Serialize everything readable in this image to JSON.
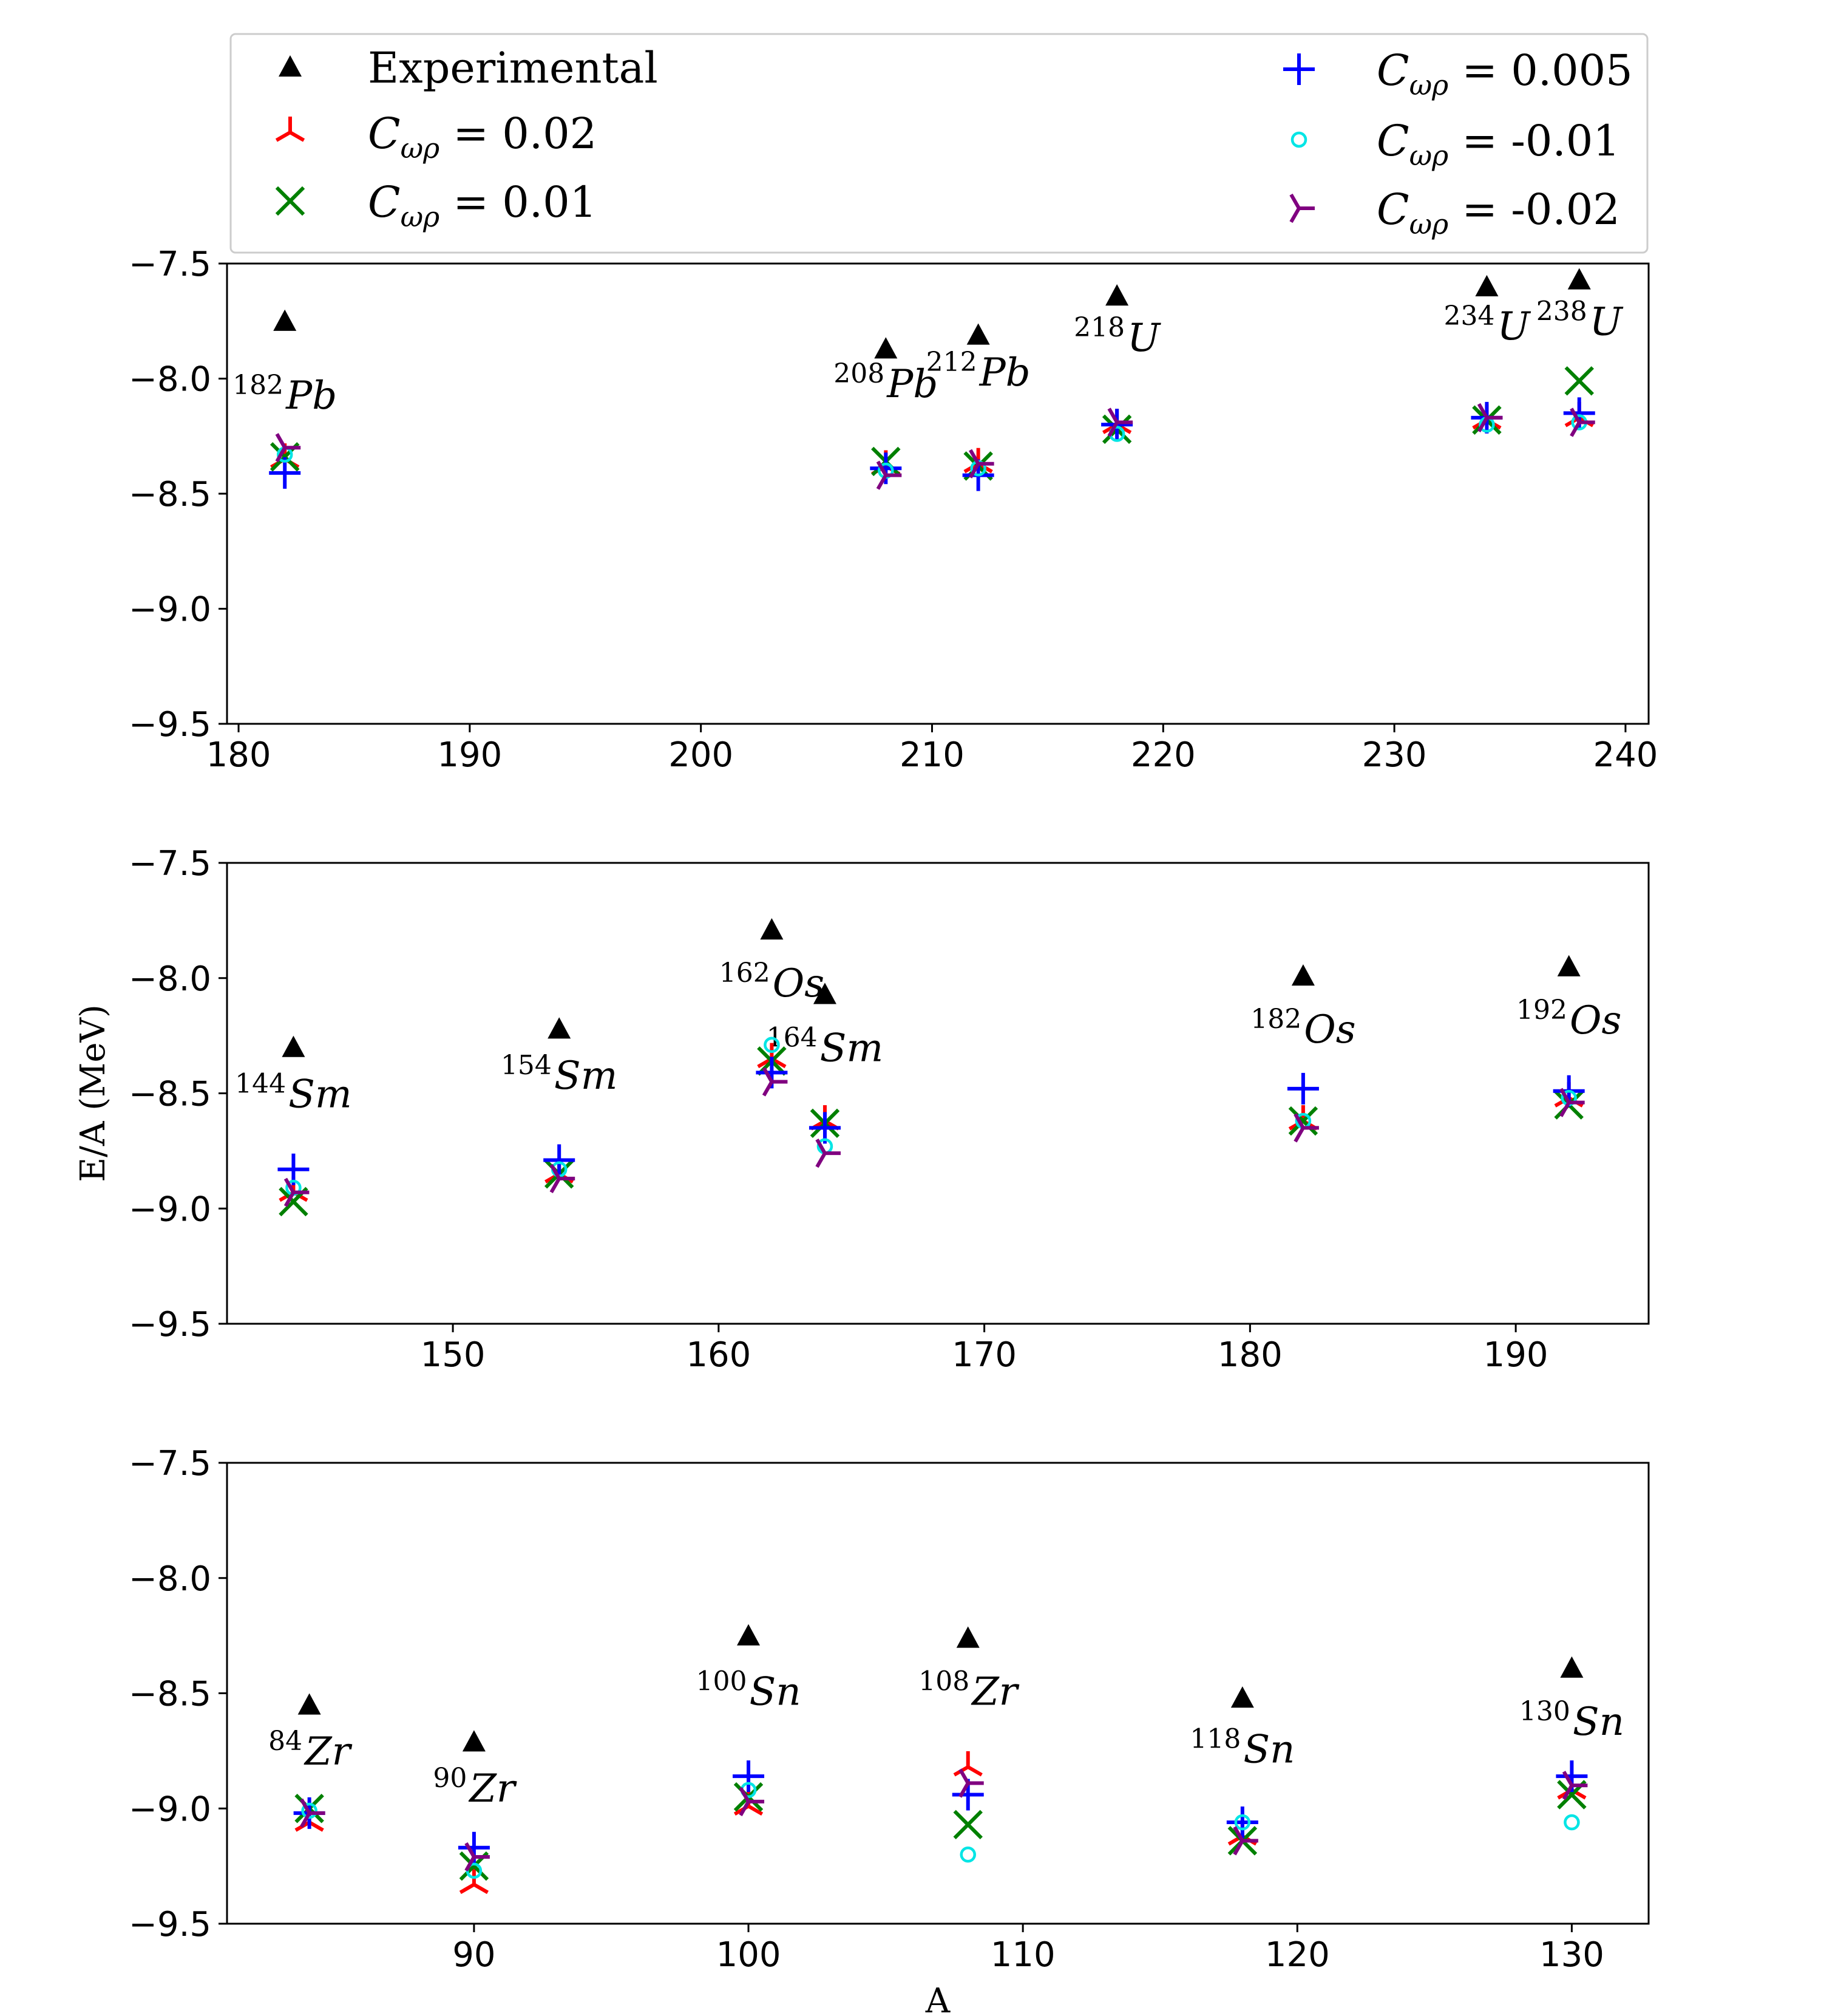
{
  "chart_data": [
    {
      "type": "scatter",
      "panel": "top",
      "xlim": [
        179.5,
        241
      ],
      "ylim": [
        -9.5,
        -7.5
      ],
      "xticks": [
        180,
        190,
        200,
        210,
        220,
        230,
        240
      ],
      "yticks": [
        -7.5,
        -8.0,
        -8.5,
        -9.0,
        -9.5
      ],
      "xtick_labels": [
        "180",
        "190",
        "200",
        "210",
        "220",
        "230",
        "240"
      ],
      "ytick_labels": [
        "−7.5",
        "−8.0",
        "−8.5",
        "−9.0",
        "−9.5"
      ],
      "x": [
        182,
        208,
        212,
        218,
        234,
        238
      ],
      "nuclei": [
        {
          "mass": "182",
          "symbol": "Pb",
          "label_y": -8.13
        },
        {
          "mass": "208",
          "symbol": "Pb",
          "label_y": -8.08
        },
        {
          "mass": "212",
          "symbol": "Pb",
          "label_y": -8.03
        },
        {
          "mass": "218",
          "symbol": "U",
          "label_y": -7.88
        },
        {
          "mass": "234",
          "symbol": "U",
          "label_y": -7.83
        },
        {
          "mass": "238",
          "symbol": "U",
          "label_y": -7.81
        }
      ],
      "series": [
        {
          "name": "Experimental",
          "marker": "triangle",
          "values": [
            -7.75,
            -7.87,
            -7.81,
            -7.64,
            -7.6,
            -7.57
          ]
        },
        {
          "name": "C_wr = 0.02",
          "marker": "tri_down",
          "values": [
            -8.35,
            -8.38,
            -8.37,
            -8.2,
            -8.18,
            -8.17
          ]
        },
        {
          "name": "C_wr = 0.01",
          "marker": "x",
          "values": [
            -8.34,
            -8.36,
            -8.38,
            -8.22,
            -8.18,
            -8.01
          ]
        },
        {
          "name": "C_wr = 0.005",
          "marker": "plus",
          "values": [
            -8.41,
            -8.39,
            -8.42,
            -8.2,
            -8.17,
            -8.15
          ]
        },
        {
          "name": "C_wr = -0.01",
          "marker": "circle",
          "values": [
            -8.33,
            -8.4,
            -8.39,
            -8.24,
            -8.2,
            -8.19
          ]
        },
        {
          "name": "C_wr = -0.02",
          "marker": "tri_left",
          "values": [
            -8.3,
            -8.42,
            -8.37,
            -8.19,
            -8.17,
            -8.19
          ]
        }
      ]
    },
    {
      "type": "scatter",
      "panel": "middle",
      "xlim": [
        141.5,
        195
      ],
      "ylim": [
        -9.5,
        -7.5
      ],
      "xticks": [
        150,
        160,
        170,
        180,
        190
      ],
      "yticks": [
        -7.5,
        -8.0,
        -8.5,
        -9.0,
        -9.5
      ],
      "xtick_labels": [
        "150",
        "160",
        "170",
        "180",
        "190"
      ],
      "ytick_labels": [
        "−7.5",
        "−8.0",
        "−8.5",
        "−9.0",
        "−9.5"
      ],
      "ylabel": "E/A (MeV)",
      "x": [
        144,
        154,
        162,
        164,
        182,
        192
      ],
      "nuclei": [
        {
          "mass": "144",
          "symbol": "Sm",
          "label_y": -8.56
        },
        {
          "mass": "154",
          "symbol": "Sm",
          "label_y": -8.48
        },
        {
          "mass": "162",
          "symbol": "Os",
          "label_y": -8.08
        },
        {
          "mass": "164",
          "symbol": "Sm",
          "label_y": -8.36
        },
        {
          "mass": "182",
          "symbol": "Os",
          "label_y": -8.28
        },
        {
          "mass": "192",
          "symbol": "Os",
          "label_y": -8.24
        }
      ],
      "series": [
        {
          "name": "Experimental",
          "marker": "triangle",
          "values": [
            -8.3,
            -8.22,
            -7.79,
            -8.07,
            -7.99,
            -7.95
          ]
        },
        {
          "name": "C_wr = 0.02",
          "marker": "tri_down",
          "values": [
            -8.93,
            -8.85,
            -8.35,
            -8.62,
            -8.62,
            -8.52
          ]
        },
        {
          "name": "C_wr = 0.01",
          "marker": "x",
          "values": [
            -8.97,
            -8.85,
            -8.36,
            -8.63,
            -8.62,
            -8.55
          ]
        },
        {
          "name": "C_wr = 0.005",
          "marker": "plus",
          "values": [
            -8.83,
            -8.79,
            -8.41,
            -8.65,
            -8.48,
            -8.49
          ]
        },
        {
          "name": "C_wr = -0.01",
          "marker": "circle",
          "values": [
            -8.91,
            -8.83,
            -8.29,
            -8.73,
            -8.62,
            -8.52
          ]
        },
        {
          "name": "C_wr = -0.02",
          "marker": "tri_left",
          "values": [
            -8.93,
            -8.87,
            -8.45,
            -8.76,
            -8.65,
            -8.54
          ]
        }
      ]
    },
    {
      "type": "scatter",
      "panel": "bottom",
      "xlim": [
        81,
        132.8
      ],
      "ylim": [
        -9.5,
        -7.5
      ],
      "xticks": [
        90,
        100,
        110,
        120,
        130
      ],
      "yticks": [
        -7.5,
        -8.0,
        -8.5,
        -9.0,
        -9.5
      ],
      "xtick_labels": [
        "90",
        "100",
        "110",
        "120",
        "130"
      ],
      "ytick_labels": [
        "−7.5",
        "−8.0",
        "−8.5",
        "−9.0",
        "−9.5"
      ],
      "xlabel": "A",
      "x": [
        84,
        90,
        100,
        108,
        118,
        130
      ],
      "nuclei": [
        {
          "mass": "84",
          "symbol": "Zr",
          "label_y": -8.81
        },
        {
          "mass": "90",
          "symbol": "Zr",
          "label_y": -8.97
        },
        {
          "mass": "100",
          "symbol": "Sn",
          "label_y": -8.55
        },
        {
          "mass": "108",
          "symbol": "Zr",
          "label_y": -8.55
        },
        {
          "mass": "118",
          "symbol": "Sn",
          "label_y": -8.8
        },
        {
          "mass": "130",
          "symbol": "Sn",
          "label_y": -8.68
        }
      ],
      "series": [
        {
          "name": "Experimental",
          "marker": "triangle",
          "values": [
            -8.55,
            -8.71,
            -8.25,
            -8.26,
            -8.52,
            -8.39
          ]
        },
        {
          "name": "C_wr = 0.02",
          "marker": "tri_down",
          "values": [
            -9.06,
            -9.33,
            -8.99,
            -8.82,
            -9.12,
            -8.92
          ]
        },
        {
          "name": "C_wr = 0.01",
          "marker": "x",
          "values": [
            -9.0,
            -9.25,
            -8.95,
            -9.07,
            -9.14,
            -8.94
          ]
        },
        {
          "name": "C_wr = 0.005",
          "marker": "plus",
          "values": [
            -9.02,
            -9.17,
            -8.86,
            -8.94,
            -9.06,
            -8.86
          ]
        },
        {
          "name": "C_wr = -0.01",
          "marker": "circle",
          "values": [
            -9.01,
            -9.27,
            -8.92,
            -9.2,
            -9.06,
            -9.06
          ]
        },
        {
          "name": "C_wr = -0.02",
          "marker": "tri_left",
          "values": [
            -9.02,
            -9.21,
            -8.97,
            -8.89,
            -9.14,
            -8.9
          ]
        }
      ]
    }
  ],
  "legend": {
    "entries": [
      {
        "marker": "triangle",
        "color": "#000000",
        "text": "Experimental",
        "is_coupling": false,
        "value": ""
      },
      {
        "marker": "tri_down",
        "color": "#ff0000",
        "text": "C",
        "is_coupling": true,
        "value": " = 0.02"
      },
      {
        "marker": "x",
        "color": "#008000",
        "text": "C",
        "is_coupling": true,
        "value": " = 0.01"
      },
      {
        "marker": "plus",
        "color": "#0000ff",
        "text": "C",
        "is_coupling": true,
        "value": " = 0.005"
      },
      {
        "marker": "circle",
        "color": "#00e5e5",
        "text": "C",
        "is_coupling": true,
        "value": " = -0.01"
      },
      {
        "marker": "tri_left",
        "color": "#800080",
        "text": "C",
        "is_coupling": true,
        "value": " = -0.02"
      }
    ],
    "subscript": "ωρ"
  },
  "colors": {
    "Experimental": "#000000",
    "C_wr = 0.02": "#ff0000",
    "C_wr = 0.01": "#008000",
    "C_wr = 0.005": "#0000ff",
    "C_wr = -0.01": "#00e5e5",
    "C_wr = -0.02": "#800080"
  }
}
